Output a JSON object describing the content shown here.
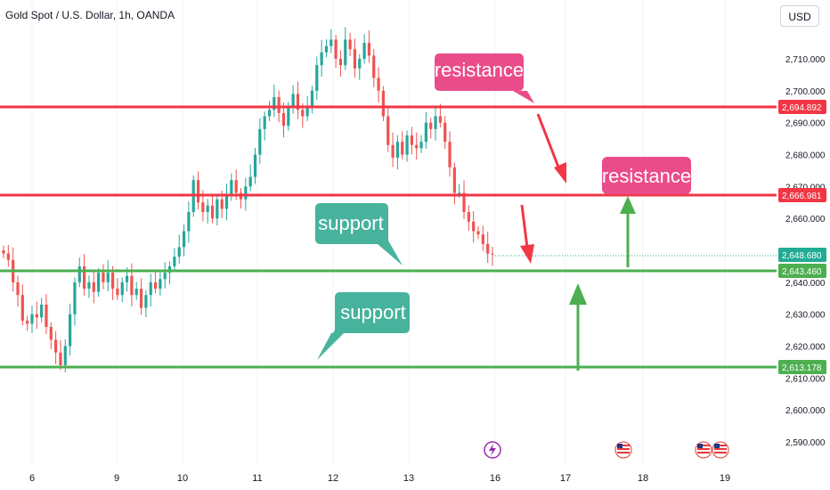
{
  "header": {
    "title": "Gold Spot / U.S. Dollar, 1h, OANDA",
    "currency_button": "USD"
  },
  "colors": {
    "up": "#26a69a",
    "down": "#ef5350",
    "resistance_line": "#f23645",
    "support_line": "#4caf50",
    "resistance_callout": "#ea4c89",
    "support_callout": "#47b39d",
    "current_price_badge": "#22ab94"
  },
  "y_axis": {
    "ticks": [
      "2,710.000",
      "2,700.000",
      "2,690.000",
      "2,680.000",
      "2,670.000",
      "2,660.000",
      "2,650.000",
      "2,640.000",
      "2,630.000",
      "2,620.000",
      "2,610.000",
      "2,600.000",
      "2,590.000"
    ]
  },
  "x_axis": {
    "ticks": [
      "6",
      "9",
      "10",
      "11",
      "12",
      "13",
      "16",
      "17",
      "18",
      "19"
    ]
  },
  "price_badges": {
    "resistance_upper": "2,694.892",
    "resistance_lower": "2,666.981",
    "current": "2,648.680",
    "support_upper": "2,643.460",
    "support_lower": "2,613.178"
  },
  "callouts": {
    "resistance_1": "resistance",
    "resistance_2": "resistance",
    "support_1": "support",
    "support_2": "support"
  },
  "events": [
    {
      "name": "lightning-event-icon"
    },
    {
      "name": "us-flag-event-icon"
    },
    {
      "name": "us-flag-event-icon"
    },
    {
      "name": "us-flag-event-icon"
    }
  ],
  "chart_data": {
    "type": "candlestick",
    "title": "Gold Spot / U.S. Dollar, 1h, OANDA",
    "x_labels": [
      "6",
      "9",
      "10",
      "11",
      "12",
      "13",
      "16",
      "17",
      "18",
      "19"
    ],
    "ylim": [
      2585,
      2720
    ],
    "levels": [
      {
        "label": "resistance",
        "value": 2694.892
      },
      {
        "label": "resistance",
        "value": 2666.981
      },
      {
        "label": "support",
        "value": 2643.46
      },
      {
        "label": "support",
        "value": 2613.178
      }
    ],
    "last_price": 2648.68,
    "close_path": [
      2649,
      2647,
      2640,
      2636,
      2628,
      2627,
      2630,
      2629,
      2633,
      2626,
      2622,
      2618,
      2614,
      2620,
      2630,
      2640,
      2645,
      2638,
      2640,
      2637,
      2643,
      2640,
      2643,
      2638,
      2636,
      2640,
      2642,
      2636,
      2638,
      2632,
      2636,
      2640,
      2638,
      2641,
      2643,
      2645,
      2648,
      2651,
      2656,
      2662,
      2672,
      2665,
      2662,
      2664,
      2660,
      2666,
      2663,
      2667,
      2672,
      2668,
      2666,
      2670,
      2673,
      2680,
      2688,
      2692,
      2694,
      2698,
      2693,
      2689,
      2695,
      2699,
      2694,
      2692,
      2695,
      2700,
      2708,
      2712,
      2714,
      2716,
      2710,
      2708,
      2716,
      2713,
      2707,
      2710,
      2715,
      2711,
      2704,
      2700,
      2692,
      2683,
      2679,
      2684,
      2680,
      2686,
      2683,
      2682,
      2684,
      2690,
      2688,
      2692,
      2690,
      2684,
      2676,
      2668,
      2668,
      2662,
      2659,
      2656,
      2655,
      2652,
      2649,
      2648.7
    ]
  }
}
